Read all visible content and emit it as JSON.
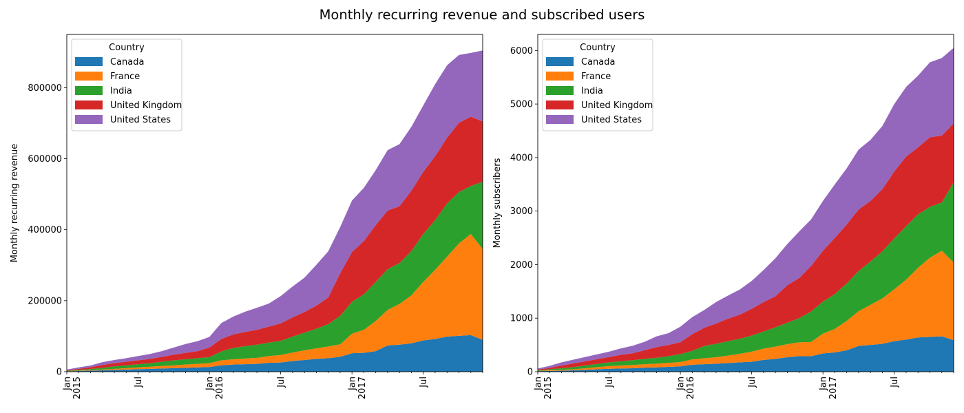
{
  "title": "Monthly recurring revenue and subscribed users",
  "colors": {
    "Canada": "#1f77b4",
    "France": "#ff7f0e",
    "India": "#2ca02c",
    "United Kingdom": "#d62728",
    "United States": "#9467bd"
  },
  "x_tick_labels": [
    {
      "label": "Jan",
      "sublabel": "2015",
      "month": 0
    },
    {
      "label": "Jul",
      "sublabel": "",
      "month": 6
    },
    {
      "label": "Jan",
      "sublabel": "2016",
      "month": 12
    },
    {
      "label": "Jul",
      "sublabel": "",
      "month": 18
    },
    {
      "label": "Jan",
      "sublabel": "2017",
      "month": 24
    },
    {
      "label": "Jul",
      "sublabel": "",
      "month": 30
    }
  ],
  "months": [
    "2015-01",
    "2015-02",
    "2015-03",
    "2015-04",
    "2015-05",
    "2015-06",
    "2015-07",
    "2015-08",
    "2015-09",
    "2015-10",
    "2015-11",
    "2015-12",
    "2016-01",
    "2016-02",
    "2016-03",
    "2016-04",
    "2016-05",
    "2016-06",
    "2016-07",
    "2016-08",
    "2016-09",
    "2016-10",
    "2016-11",
    "2016-12",
    "2017-01",
    "2017-02",
    "2017-03",
    "2017-04",
    "2017-05",
    "2017-06",
    "2017-07",
    "2017-08",
    "2017-09",
    "2017-10",
    "2017-11",
    "2017-12"
  ],
  "chart_data": [
    {
      "type": "area",
      "stacked": true,
      "ylabel": "Monthly recurring revenue",
      "xlim": [
        "2015-01",
        "2017-12"
      ],
      "ylim": [
        0,
        950000
      ],
      "yticks": [
        0,
        200000,
        400000,
        600000,
        800000
      ],
      "legend": {
        "title": "Country",
        "placement": "top-left"
      },
      "series": [
        {
          "name": "Canada",
          "values": [
            1000,
            2000,
            3000,
            4000,
            5000,
            6000,
            7000,
            8000,
            9000,
            10000,
            11000,
            12000,
            13000,
            18000,
            20000,
            21000,
            22000,
            25000,
            26000,
            30000,
            33000,
            36000,
            38000,
            42000,
            52000,
            53000,
            58000,
            74000,
            76000,
            80000,
            88000,
            92000,
            99000,
            101000,
            103000,
            90000
          ]
        },
        {
          "name": "France",
          "values": [
            500,
            1000,
            1500,
            2000,
            3000,
            4000,
            5000,
            6000,
            7000,
            8000,
            9000,
            10000,
            11000,
            14000,
            15000,
            16000,
            17000,
            19000,
            21000,
            24000,
            27000,
            30000,
            33000,
            35000,
            55000,
            65000,
            85000,
            100000,
            115000,
            135000,
            165000,
            195000,
            225000,
            260000,
            285000,
            255000
          ]
        },
        {
          "name": "India",
          "values": [
            1000,
            2000,
            3000,
            5000,
            7000,
            8000,
            9000,
            10000,
            12000,
            14000,
            15000,
            16000,
            17000,
            25000,
            32000,
            35000,
            37000,
            38000,
            40000,
            45000,
            50000,
            55000,
            63000,
            80000,
            90000,
            100000,
            110000,
            115000,
            115000,
            125000,
            135000,
            140000,
            150000,
            145000,
            135000,
            190000
          ]
        },
        {
          "name": "United Kingdom",
          "values": [
            1500,
            3000,
            5000,
            8000,
            9000,
            10000,
            11000,
            12000,
            14000,
            16000,
            18000,
            20000,
            27000,
            35000,
            38000,
            40000,
            42000,
            45000,
            49000,
            54000,
            58000,
            65000,
            75000,
            120000,
            140000,
            150000,
            160000,
            165000,
            160000,
            170000,
            175000,
            180000,
            185000,
            195000,
            195000,
            170000
          ]
        },
        {
          "name": "United States",
          "values": [
            2000,
            4000,
            5000,
            8000,
            9000,
            10000,
            12000,
            14000,
            16000,
            20000,
            25000,
            28000,
            30000,
            45000,
            50000,
            57000,
            62000,
            65000,
            77000,
            87000,
            97000,
            115000,
            130000,
            130000,
            145000,
            150000,
            155000,
            170000,
            175000,
            180000,
            187000,
            203000,
            204000,
            191000,
            180000,
            200000
          ]
        }
      ]
    },
    {
      "type": "area",
      "stacked": true,
      "ylabel": "Monthly subscribers",
      "xlim": [
        "2015-01",
        "2017-12"
      ],
      "ylim": [
        0,
        6300
      ],
      "yticks": [
        0,
        1000,
        2000,
        3000,
        4000,
        5000,
        6000
      ],
      "legend": {
        "title": "Country",
        "placement": "top-left"
      },
      "series": [
        {
          "name": "Canada",
          "values": [
            10,
            15,
            20,
            25,
            35,
            45,
            55,
            60,
            65,
            75,
            80,
            90,
            100,
            130,
            140,
            150,
            160,
            175,
            185,
            220,
            240,
            270,
            290,
            290,
            340,
            360,
            400,
            480,
            500,
            520,
            570,
            600,
            640,
            650,
            660,
            590
          ]
        },
        {
          "name": "France",
          "values": [
            5,
            10,
            15,
            20,
            30,
            40,
            50,
            55,
            60,
            65,
            70,
            75,
            80,
            100,
            110,
            120,
            140,
            160,
            190,
            210,
            230,
            245,
            260,
            265,
            370,
            440,
            550,
            650,
            750,
            850,
            970,
            1120,
            1300,
            1480,
            1600,
            1450
          ]
        },
        {
          "name": "India",
          "values": [
            10,
            20,
            30,
            40,
            50,
            60,
            70,
            80,
            90,
            100,
            110,
            125,
            150,
            160,
            230,
            250,
            270,
            280,
            300,
            320,
            360,
            400,
            450,
            570,
            600,
            650,
            700,
            750,
            810,
            880,
            950,
            1000,
            1000,
            950,
            900,
            1500
          ]
        },
        {
          "name": "United Kingdom",
          "values": [
            15,
            25,
            50,
            70,
            80,
            90,
            100,
            120,
            130,
            160,
            200,
            210,
            220,
            310,
            340,
            380,
            420,
            450,
            500,
            550,
            580,
            700,
            750,
            850,
            950,
            1050,
            1100,
            1150,
            1130,
            1160,
            1250,
            1300,
            1250,
            1300,
            1250,
            1100
          ]
        },
        {
          "name": "United States",
          "values": [
            20,
            40,
            60,
            70,
            80,
            90,
            100,
            120,
            140,
            160,
            200,
            220,
            290,
            320,
            330,
            400,
            430,
            470,
            520,
            600,
            710,
            770,
            870,
            870,
            930,
            1000,
            1050,
            1120,
            1140,
            1180,
            1260,
            1300,
            1340,
            1400,
            1450,
            1410
          ]
        }
      ]
    }
  ]
}
